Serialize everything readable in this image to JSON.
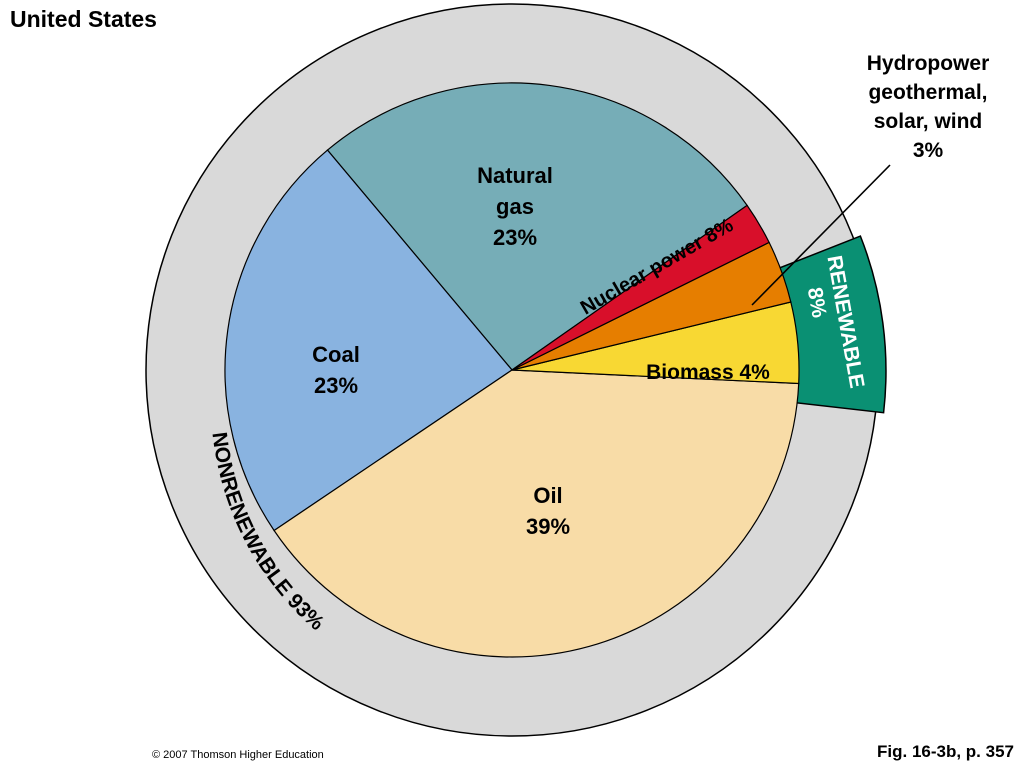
{
  "title": "United States",
  "copyright": "© 2007 Thomson Higher Education",
  "figure_ref": "Fig. 16-3b, p. 357",
  "chart_data": {
    "type": "pie",
    "title": "United States",
    "slices": [
      {
        "name": "Natural gas",
        "label_lines": [
          "Natural",
          "gas",
          "23%"
        ],
        "value": 23,
        "color": "#76adb7",
        "group": "nonrenewable"
      },
      {
        "name": "Coal",
        "label_lines": [
          "Coal",
          "23%"
        ],
        "value": 23,
        "color": "#89b3e0",
        "group": "nonrenewable"
      },
      {
        "name": "Oil",
        "label_lines": [
          "Oil",
          "39%"
        ],
        "value": 39,
        "color": "#f8dca7",
        "group": "nonrenewable"
      },
      {
        "name": "Biomass",
        "label_lines": [
          "Biomass 4%"
        ],
        "value": 4,
        "color": "#f8d833",
        "group": "renewable"
      },
      {
        "name": "Hydropower geothermal, solar, wind",
        "label_lines": [
          "Hydropower",
          "geothermal,",
          "solar, wind",
          "3%"
        ],
        "value": 3,
        "color": "#e67e00",
        "group": "renewable"
      },
      {
        "name": "Nuclear power",
        "label_lines": [
          "Nuclear power 8%"
        ],
        "value": 8,
        "color": "#d80f2a",
        "group": "nonrenewable"
      }
    ],
    "groups": [
      {
        "name": "NONRENEWABLE",
        "label": "NONRENEWABLE 93%",
        "value": 93,
        "color": "#d9d9d9"
      },
      {
        "name": "RENEWABLE",
        "label_lines": [
          "RENEWABLE",
          "8%"
        ],
        "value": 8,
        "color": "#0a9073"
      }
    ],
    "legend": "none"
  }
}
